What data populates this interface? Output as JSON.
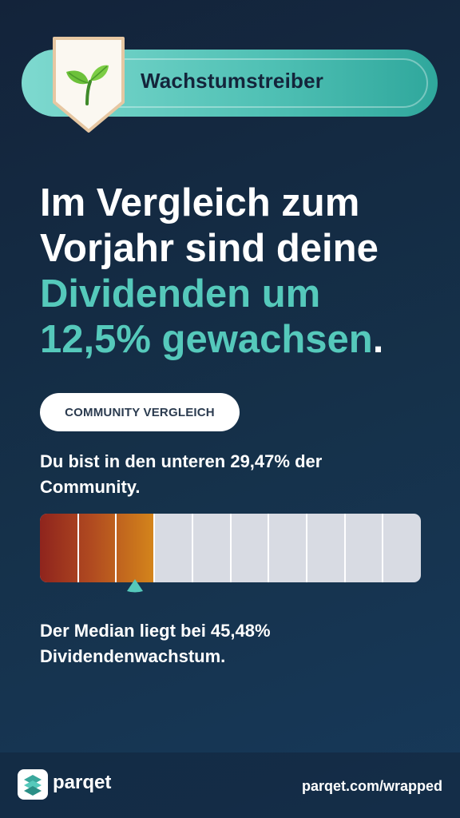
{
  "badge": {
    "title": "Wachstumstreiber",
    "icon": "sprout-icon"
  },
  "headline": {
    "line1": "Im Vergleich zum",
    "line2": "Vorjahr sind deine",
    "line3_accent": "Dividenden um",
    "line4_accent": "12,5% gewachsen",
    "line4_end": "."
  },
  "community": {
    "pill_label": "COMMUNITY VERGLEICH",
    "rank_text": "Du bist in den unteren 29,47% der Community.",
    "percentile": 29.47,
    "filled_segments": 3,
    "total_segments": 10,
    "median_text": "Der Median liegt bei 45,48% Dividendenwachstum."
  },
  "colors": {
    "accent": "#55c9bb",
    "background": "#13233a",
    "bar_fill_start": "#8f241d",
    "bar_fill_end": "#d4851b",
    "bar_empty": "#d8dbe3"
  },
  "footer": {
    "logo_text": "parqet",
    "url": "parqet.com/wrapped"
  }
}
